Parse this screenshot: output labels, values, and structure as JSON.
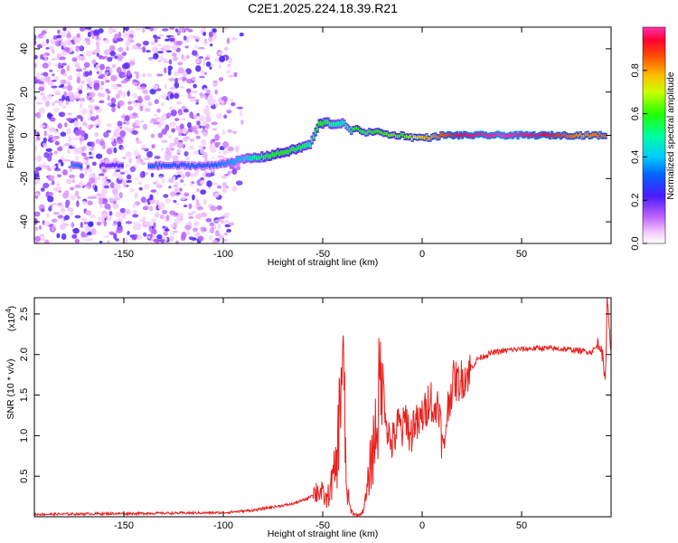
{
  "title": "C2E1.2025.224.18.39.R21",
  "chart_data": [
    {
      "type": "heatmap",
      "title": "C2E1.2025.224.18.39.R21",
      "xlabel": "Height of straight line (km)",
      "ylabel": "Frequency (Hz)",
      "xlim": [
        -195,
        95
      ],
      "ylim": [
        -50,
        50
      ],
      "xticks": [
        -150,
        -100,
        -50,
        0,
        50
      ],
      "yticks": [
        -40,
        -20,
        0,
        20,
        40
      ],
      "colorbar": {
        "label": "Normalized spectral amplitude",
        "range": [
          0,
          1
        ],
        "ticks": [
          "0.0",
          "0.2",
          "0.4",
          "0.6",
          "0.8"
        ],
        "colormap": "rainbow"
      },
      "ridge": {
        "x": [
          -175,
          -160,
          -140,
          -120,
          -105,
          -100,
          -90,
          -80,
          -70,
          -62,
          -56,
          -52,
          -48,
          -44,
          -40,
          -36,
          -32,
          -28,
          -24,
          -20,
          -15,
          -10,
          -5,
          0,
          5,
          10,
          20,
          40,
          60,
          80,
          93
        ],
        "y": [
          -14,
          -14,
          -14,
          -14,
          -14,
          -13,
          -11,
          -10,
          -8,
          -6,
          -4,
          5,
          6,
          5,
          6,
          2,
          3,
          1,
          2,
          1,
          0,
          0,
          -1,
          -1,
          -1,
          0,
          0,
          0,
          0,
          0,
          0
        ],
        "amplitude": [
          0.35,
          0.2,
          0.3,
          0.3,
          0.3,
          0.35,
          0.4,
          0.55,
          0.6,
          0.55,
          0.5,
          0.6,
          0.55,
          0.5,
          0.45,
          0.55,
          0.6,
          0.55,
          0.6,
          0.6,
          0.65,
          0.6,
          0.7,
          0.75,
          0.8,
          0.85,
          0.95,
          1.0,
          0.95,
          0.8,
          0.85
        ]
      }
    },
    {
      "type": "line",
      "title": "",
      "xlabel": "Height of straight line (km)",
      "ylabel": "SNR (10 * v/v)",
      "y_multiplier_label": "(x10",
      "y_multiplier_exp": "4",
      "y_multiplier_close": ")",
      "xlim": [
        -195,
        95
      ],
      "ylim": [
        0,
        27000
      ],
      "xticks": [
        -150,
        -100,
        -50,
        0,
        50
      ],
      "yticks": [
        "0.5",
        "1.0",
        "1.5",
        "2.0",
        "2.5"
      ],
      "color": "#e8201e",
      "series": [
        {
          "x": [
            -195,
            -150,
            -100,
            -85,
            -75,
            -65,
            -58,
            -52,
            -48,
            -45,
            -43,
            -42,
            -41,
            -40,
            -39,
            -38,
            -37,
            -36,
            -34,
            -32,
            -30,
            -28,
            -26,
            -24,
            -22,
            -20,
            -18,
            -16,
            -14,
            -12,
            -10,
            -8,
            -6,
            -4,
            -2,
            0,
            2,
            4,
            6,
            8,
            10,
            11,
            12,
            14,
            16,
            18,
            20,
            24,
            28,
            35,
            45,
            60,
            75,
            85,
            90,
            92,
            93,
            95
          ],
          "y": [
            300,
            400,
            500,
            800,
            1200,
            1600,
            2200,
            3300,
            2000,
            4500,
            6500,
            10500,
            17000,
            20000,
            12000,
            3000,
            2200,
            800,
            300,
            200,
            600,
            2500,
            6500,
            9500,
            14000,
            17500,
            12000,
            9000,
            9500,
            11500,
            10500,
            12500,
            9500,
            12000,
            11000,
            12500,
            13000,
            15500,
            12000,
            15000,
            9000,
            7700,
            12000,
            15000,
            17000,
            16500,
            17000,
            18000,
            19500,
            20200,
            20600,
            20800,
            20600,
            20300,
            21500,
            16000,
            27000,
            21000
          ]
        }
      ]
    }
  ],
  "colors": {
    "axis": "#000000",
    "line": "#e8201e",
    "background": "#ffffff"
  }
}
